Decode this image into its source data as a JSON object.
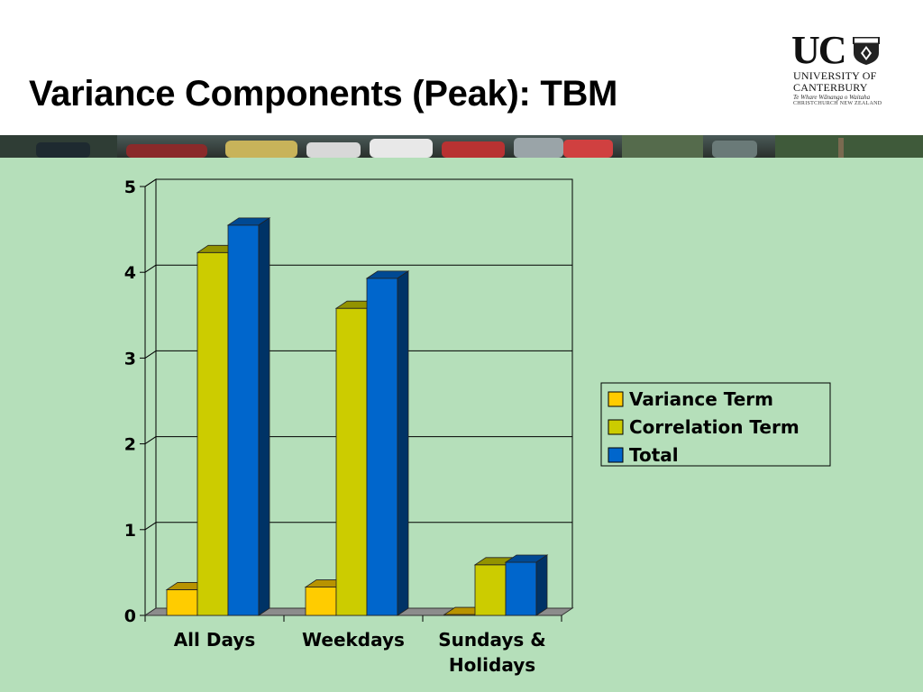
{
  "slide": {
    "title": "Variance Components (Peak): TBM",
    "logo": {
      "initials": "UC",
      "line1": "UNIVERSITY OF",
      "line2": "CANTERBURY",
      "maori": "Te Whare Wānanga o Waitaha",
      "city": "CHRISTCHURCH NEW ZEALAND"
    },
    "banner_icon": "traffic-photo-banner"
  },
  "chart_data": {
    "type": "bar",
    "style": "3d-clustered",
    "categories": [
      "All Days",
      "Weekdays",
      "Sundays & Holidays"
    ],
    "category_lines": [
      [
        "All Days"
      ],
      [
        "Weekdays"
      ],
      [
        "Sundays &",
        "Holidays"
      ]
    ],
    "series": [
      {
        "name": "Variance Term",
        "values": [
          0.3,
          0.33,
          0.01
        ],
        "color": "#ffcc00"
      },
      {
        "name": "Correlation Term",
        "values": [
          4.23,
          3.58,
          0.59
        ],
        "color": "#cccc00"
      },
      {
        "name": "Total",
        "values": [
          4.55,
          3.93,
          0.62
        ],
        "color": "#0066cc"
      }
    ],
    "y_ticks": [
      "0",
      "1",
      "2",
      "3",
      "4",
      "5"
    ],
    "ylim": [
      0,
      5
    ],
    "title": "",
    "xlabel": "",
    "ylabel": "",
    "grid": true,
    "legend_position": "right",
    "colors": {
      "background": "#b5dfba",
      "floor": "#8c8c8c",
      "grid": "#000000"
    }
  }
}
